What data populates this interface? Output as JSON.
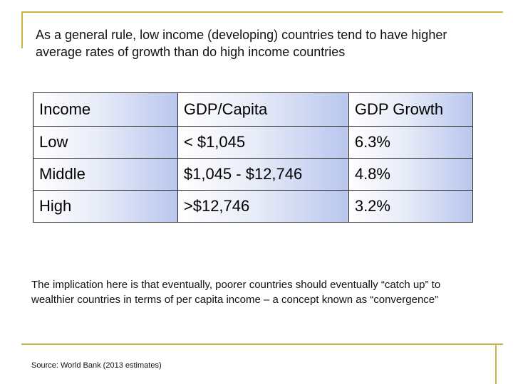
{
  "headline": "As a general rule, low income (developing) countries tend to have higher average rates of growth than do high income countries",
  "table": {
    "headers": [
      "Income",
      "GDP/Capita",
      "GDP Growth"
    ],
    "rows": [
      [
        "Low",
        "< $1,045",
        "6.3%"
      ],
      [
        "Middle",
        "$1,045 - $12,746",
        "4.8%"
      ],
      [
        "High",
        ">$12,746",
        "3.2%"
      ]
    ]
  },
  "implication": "The implication here is that eventually, poorer countries should eventually “catch up” to wealthier countries in terms of per capita income – a concept known as “convergence”",
  "source": "Source: World Bank (2013 estimates)",
  "colors": {
    "accent_rule": "#c8b24a",
    "cell_gradient_end": "#b9c6ee"
  }
}
